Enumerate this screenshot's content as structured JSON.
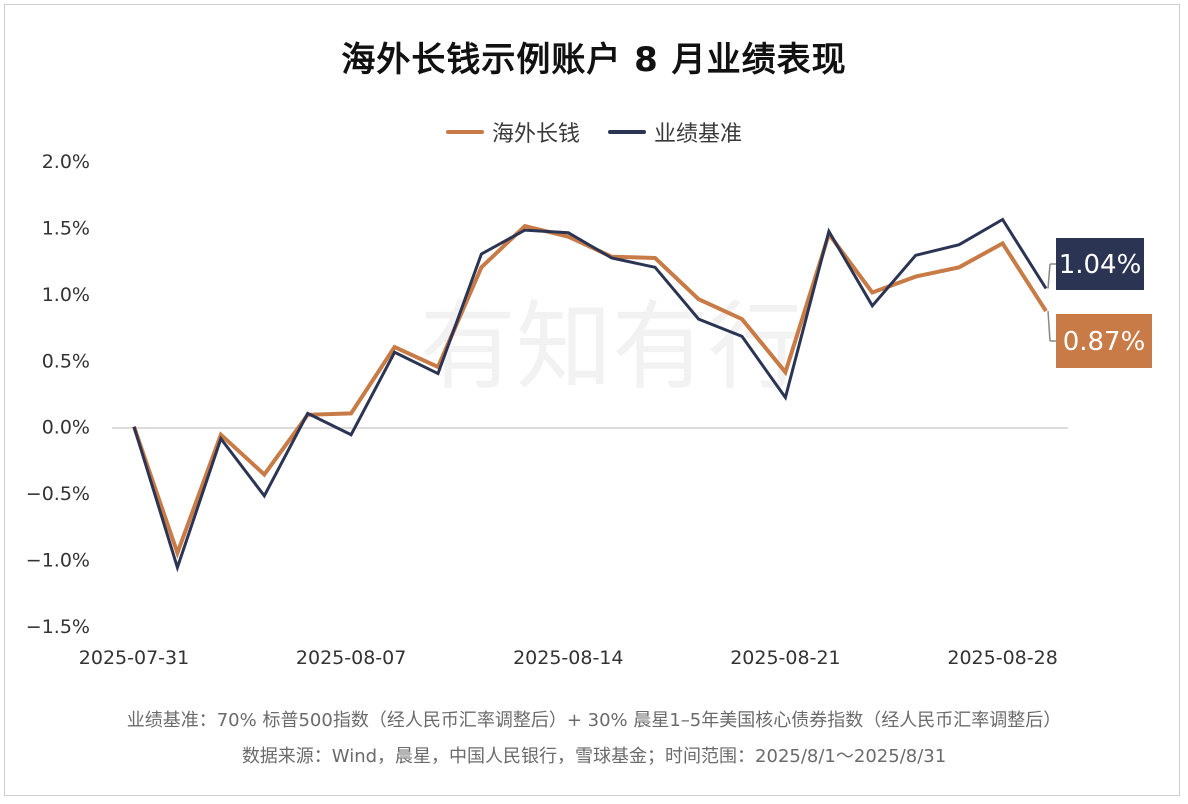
{
  "title": "海外长钱示例账户 8 月业绩表现",
  "legend": {
    "series1": "海外长钱",
    "series2": "业绩基准"
  },
  "callouts": {
    "benchmark": "1.04%",
    "account": "0.87%"
  },
  "watermark": "有知有行",
  "footnotes": {
    "line1": "业绩基准：70% 标普500指数（经人民币汇率调整后）+ 30% 晨星1–5年美国核心债券指数（经人民币汇率调整后）",
    "line2": "数据来源：Wind，晨星，中国人民银行，雪球基金；时间范围：2025/8/1～2025/8/31"
  },
  "colors": {
    "account": "#C87B46",
    "benchmark": "#2B3553",
    "axis": "#d0d0d0"
  },
  "chart_data": {
    "type": "line",
    "x": [
      "2025-07-31",
      "2025-08-01",
      "2025-08-04",
      "2025-08-05",
      "2025-08-06",
      "2025-08-07",
      "2025-08-08",
      "2025-08-11",
      "2025-08-12",
      "2025-08-13",
      "2025-08-14",
      "2025-08-15",
      "2025-08-18",
      "2025-08-19",
      "2025-08-20",
      "2025-08-21",
      "2025-08-22",
      "2025-08-25",
      "2025-08-26",
      "2025-08-27",
      "2025-08-28",
      "2025-08-29"
    ],
    "x_tick_labels": [
      "2025-07-31",
      "2025-08-07",
      "2025-08-14",
      "2025-08-21",
      "2025-08-28"
    ],
    "x_tick_indices": [
      0,
      5,
      10,
      15,
      20
    ],
    "y_tick_labels": [
      "2.0%",
      "1.5%",
      "1.0%",
      "0.5%",
      "0.0%",
      "−0.5%",
      "−1.0%",
      "−1.5%"
    ],
    "y_tick_values": [
      2.0,
      1.5,
      1.0,
      0.5,
      0.0,
      -0.5,
      -1.0,
      -1.5
    ],
    "ylim": [
      -1.5,
      2.0
    ],
    "series": [
      {
        "name": "海外长钱",
        "color": "#C87B46",
        "values": [
          0.0,
          -0.95,
          -0.06,
          -0.36,
          0.09,
          0.1,
          0.6,
          0.45,
          1.2,
          1.51,
          1.43,
          1.28,
          1.27,
          0.96,
          0.81,
          0.41,
          1.45,
          1.01,
          1.13,
          1.2,
          1.38,
          0.87
        ]
      },
      {
        "name": "业绩基准",
        "color": "#2B3553",
        "values": [
          0.0,
          -1.06,
          -0.09,
          -0.52,
          0.1,
          -0.06,
          0.56,
          0.4,
          1.3,
          1.48,
          1.46,
          1.27,
          1.2,
          0.81,
          0.68,
          0.22,
          1.47,
          0.91,
          1.29,
          1.37,
          1.56,
          1.04
        ]
      }
    ]
  }
}
